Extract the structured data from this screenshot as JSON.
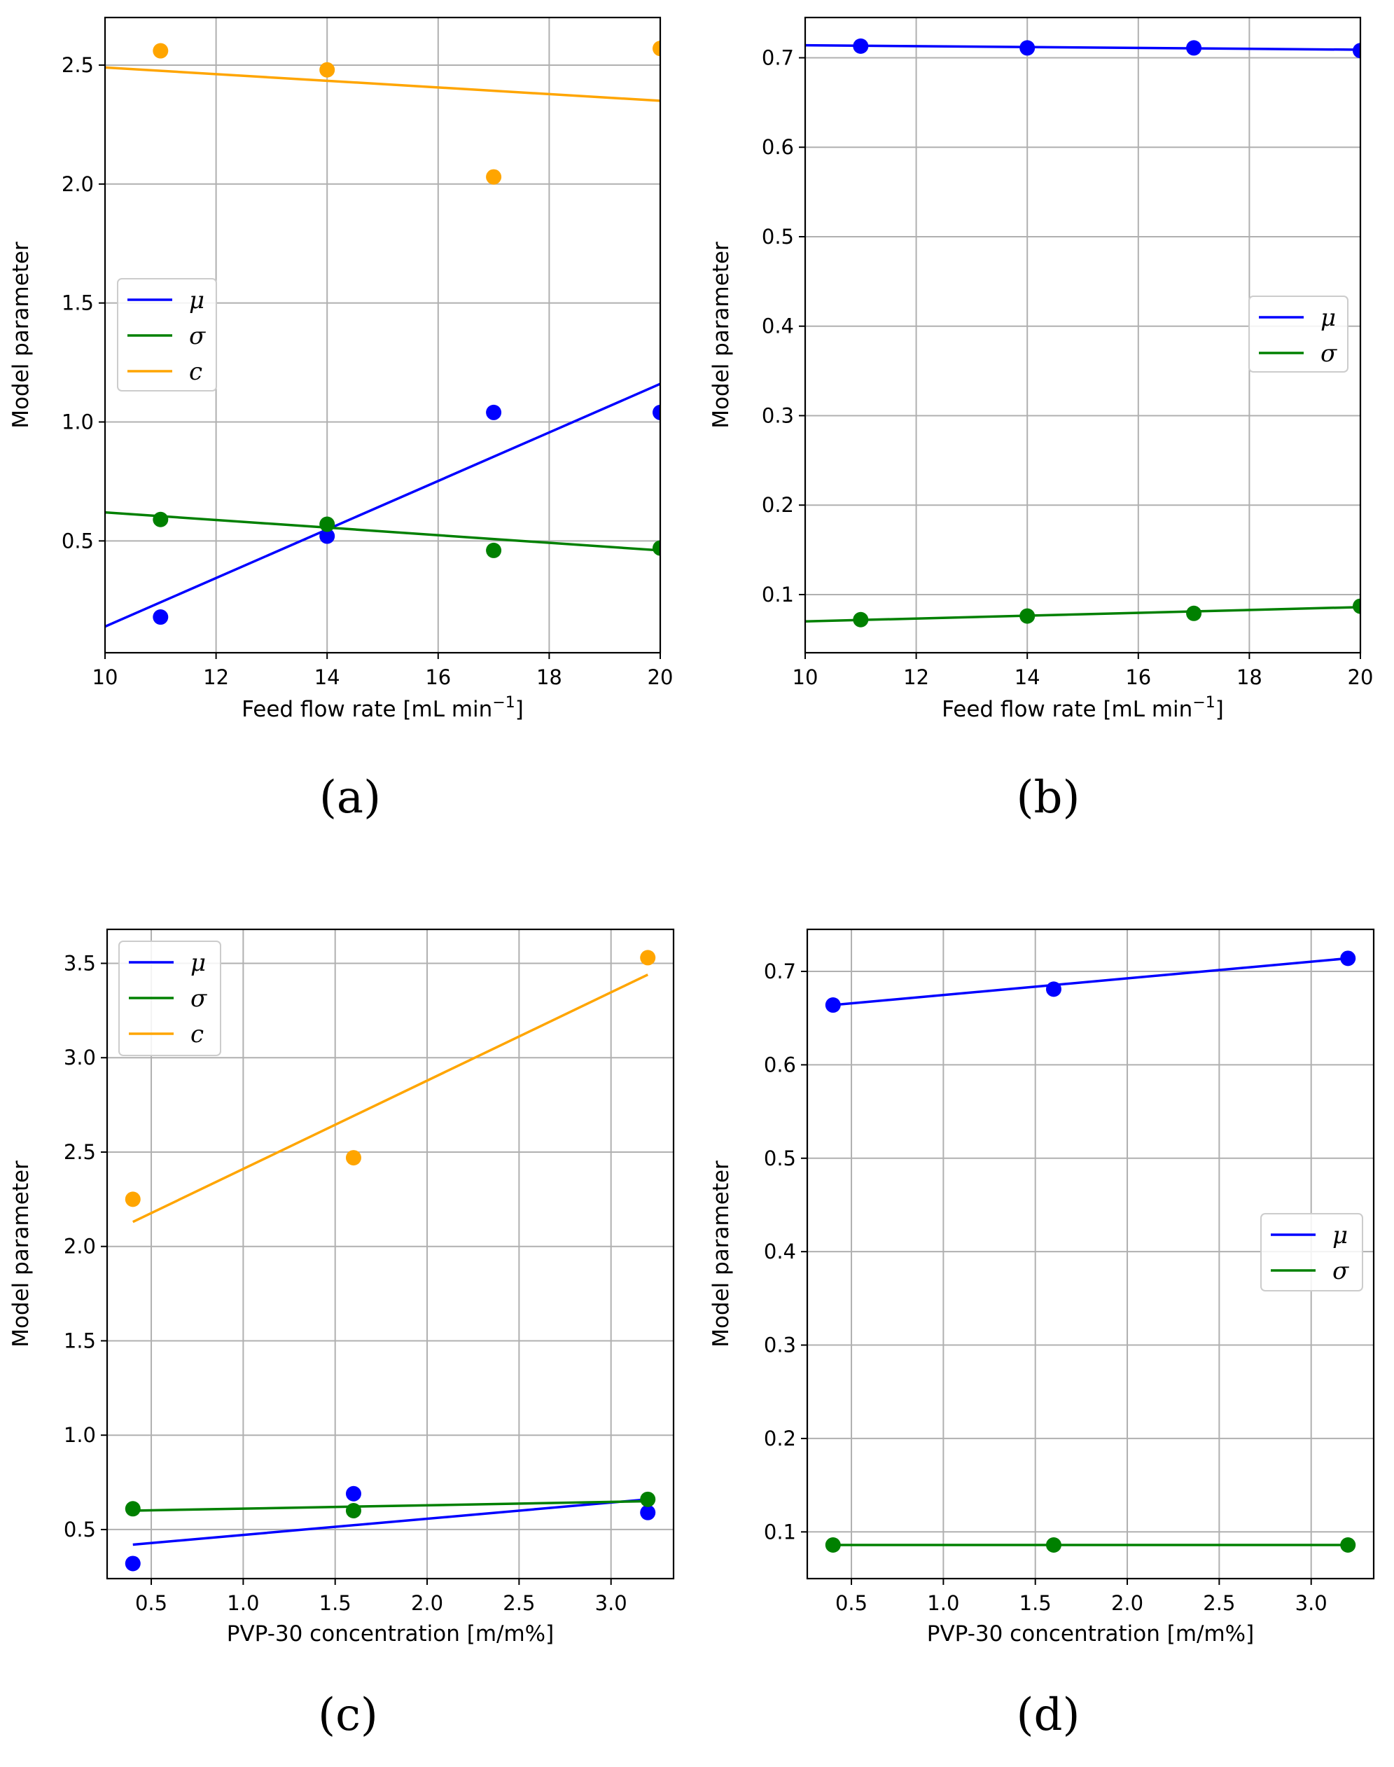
{
  "chart_data": [
    {
      "type": "scatter",
      "panel_label": "(a)",
      "xlabel": "Feed flow rate [mL min",
      "xlabel_sup": "−1",
      "xlabel_end": "]",
      "ylabel": "Model parameter",
      "xlim": [
        10,
        20
      ],
      "ylim": [
        0.03,
        2.7
      ],
      "xticks": [
        10,
        12,
        14,
        16,
        18,
        20
      ],
      "xtick_labels": [
        "10",
        "12",
        "14",
        "16",
        "18",
        "20"
      ],
      "yticks": [
        0.5,
        1.0,
        1.5,
        2.0,
        2.5
      ],
      "ytick_labels": [
        "0.5",
        "1.0",
        "1.5",
        "2.0",
        "2.5"
      ],
      "grid": true,
      "legend": {
        "position": "center-left",
        "entries": [
          "μ",
          "σ",
          "c"
        ]
      },
      "series": [
        {
          "name": "μ",
          "color": "#0000ff",
          "x": [
            11,
            14,
            17,
            20
          ],
          "y": [
            0.18,
            0.52,
            1.04,
            1.04
          ],
          "fit_x": [
            10,
            20
          ],
          "fit_y": [
            0.14,
            1.16
          ]
        },
        {
          "name": "σ",
          "color": "#008000",
          "x": [
            11,
            14,
            17,
            20
          ],
          "y": [
            0.59,
            0.57,
            0.46,
            0.47
          ],
          "fit_x": [
            10,
            20
          ],
          "fit_y": [
            0.62,
            0.46
          ]
        },
        {
          "name": "c",
          "color": "#ffa500",
          "x": [
            11,
            14,
            17,
            20
          ],
          "y": [
            2.56,
            2.48,
            2.03,
            2.57
          ],
          "fit_x": [
            10,
            20
          ],
          "fit_y": [
            2.49,
            2.35
          ]
        }
      ]
    },
    {
      "type": "scatter",
      "panel_label": "(b)",
      "xlabel": "Feed flow rate [mL min",
      "xlabel_sup": "−1",
      "xlabel_end": "]",
      "ylabel": "Model parameter",
      "xlim": [
        10,
        20
      ],
      "ylim": [
        0.035,
        0.745
      ],
      "xticks": [
        10,
        12,
        14,
        16,
        18,
        20
      ],
      "xtick_labels": [
        "10",
        "12",
        "14",
        "16",
        "18",
        "20"
      ],
      "yticks": [
        0.1,
        0.2,
        0.3,
        0.4,
        0.5,
        0.6,
        0.7
      ],
      "ytick_labels": [
        "0.1",
        "0.2",
        "0.3",
        "0.4",
        "0.5",
        "0.6",
        "0.7"
      ],
      "grid": true,
      "legend": {
        "position": "center-right",
        "entries": [
          "μ",
          "σ"
        ]
      },
      "series": [
        {
          "name": "μ",
          "color": "#0000ff",
          "x": [
            11,
            14,
            17,
            20
          ],
          "y": [
            0.713,
            0.711,
            0.711,
            0.708
          ],
          "fit_x": [
            10,
            20
          ],
          "fit_y": [
            0.714,
            0.709
          ]
        },
        {
          "name": "σ",
          "color": "#008000",
          "x": [
            11,
            14,
            17,
            20
          ],
          "y": [
            0.072,
            0.076,
            0.079,
            0.087
          ],
          "fit_x": [
            10,
            20
          ],
          "fit_y": [
            0.07,
            0.086
          ]
        }
      ]
    },
    {
      "type": "scatter",
      "panel_label": "(c)",
      "xlabel": "PVP-30 concentration [m/m%]",
      "ylabel": "Model parameter",
      "xlim": [
        0.26,
        3.34
      ],
      "ylim": [
        0.24,
        3.68
      ],
      "xticks": [
        0.5,
        1.0,
        1.5,
        2.0,
        2.5,
        3.0
      ],
      "xtick_labels": [
        "0.5",
        "1.0",
        "1.5",
        "2.0",
        "2.5",
        "3.0"
      ],
      "yticks": [
        0.5,
        1.0,
        1.5,
        2.0,
        2.5,
        3.0,
        3.5
      ],
      "ytick_labels": [
        "0.5",
        "1.0",
        "1.5",
        "2.0",
        "2.5",
        "3.0",
        "3.5"
      ],
      "grid": true,
      "legend": {
        "position": "top-left",
        "entries": [
          "μ",
          "σ",
          "c"
        ]
      },
      "series": [
        {
          "name": "μ",
          "color": "#0000ff",
          "x": [
            0.4,
            1.6,
            3.2
          ],
          "y": [
            0.32,
            0.69,
            0.59
          ],
          "fit_x": [
            0.4,
            3.2
          ],
          "fit_y": [
            0.42,
            0.66
          ]
        },
        {
          "name": "σ",
          "color": "#008000",
          "x": [
            0.4,
            1.6,
            3.2
          ],
          "y": [
            0.61,
            0.6,
            0.66
          ],
          "fit_x": [
            0.4,
            3.2
          ],
          "fit_y": [
            0.6,
            0.65
          ]
        },
        {
          "name": "c",
          "color": "#ffa500",
          "x": [
            0.4,
            1.6,
            3.2
          ],
          "y": [
            2.25,
            2.47,
            3.53
          ],
          "fit_x": [
            0.4,
            3.2
          ],
          "fit_y": [
            2.13,
            3.44
          ]
        }
      ]
    },
    {
      "type": "scatter",
      "panel_label": "(d)",
      "xlabel": "PVP-30 concentration [m/m%]",
      "ylabel": "Model parameter",
      "xlim": [
        0.26,
        3.34
      ],
      "ylim": [
        0.05,
        0.745
      ],
      "xticks": [
        0.5,
        1.0,
        1.5,
        2.0,
        2.5,
        3.0
      ],
      "xtick_labels": [
        "0.5",
        "1.0",
        "1.5",
        "2.0",
        "2.5",
        "3.0"
      ],
      "yticks": [
        0.1,
        0.2,
        0.3,
        0.4,
        0.5,
        0.6,
        0.7
      ],
      "ytick_labels": [
        "0.1",
        "0.2",
        "0.3",
        "0.4",
        "0.5",
        "0.6",
        "0.7"
      ],
      "grid": true,
      "legend": {
        "position": "center-right",
        "entries": [
          "μ",
          "σ"
        ]
      },
      "series": [
        {
          "name": "μ",
          "color": "#0000ff",
          "x": [
            0.4,
            1.6,
            3.2
          ],
          "y": [
            0.664,
            0.681,
            0.714
          ],
          "fit_x": [
            0.4,
            3.2
          ],
          "fit_y": [
            0.664,
            0.714
          ]
        },
        {
          "name": "σ",
          "color": "#008000",
          "x": [
            0.4,
            1.6,
            3.2
          ],
          "y": [
            0.086,
            0.086,
            0.086
          ],
          "fit_x": [
            0.4,
            3.2
          ],
          "fit_y": [
            0.086,
            0.086
          ]
        }
      ]
    }
  ]
}
